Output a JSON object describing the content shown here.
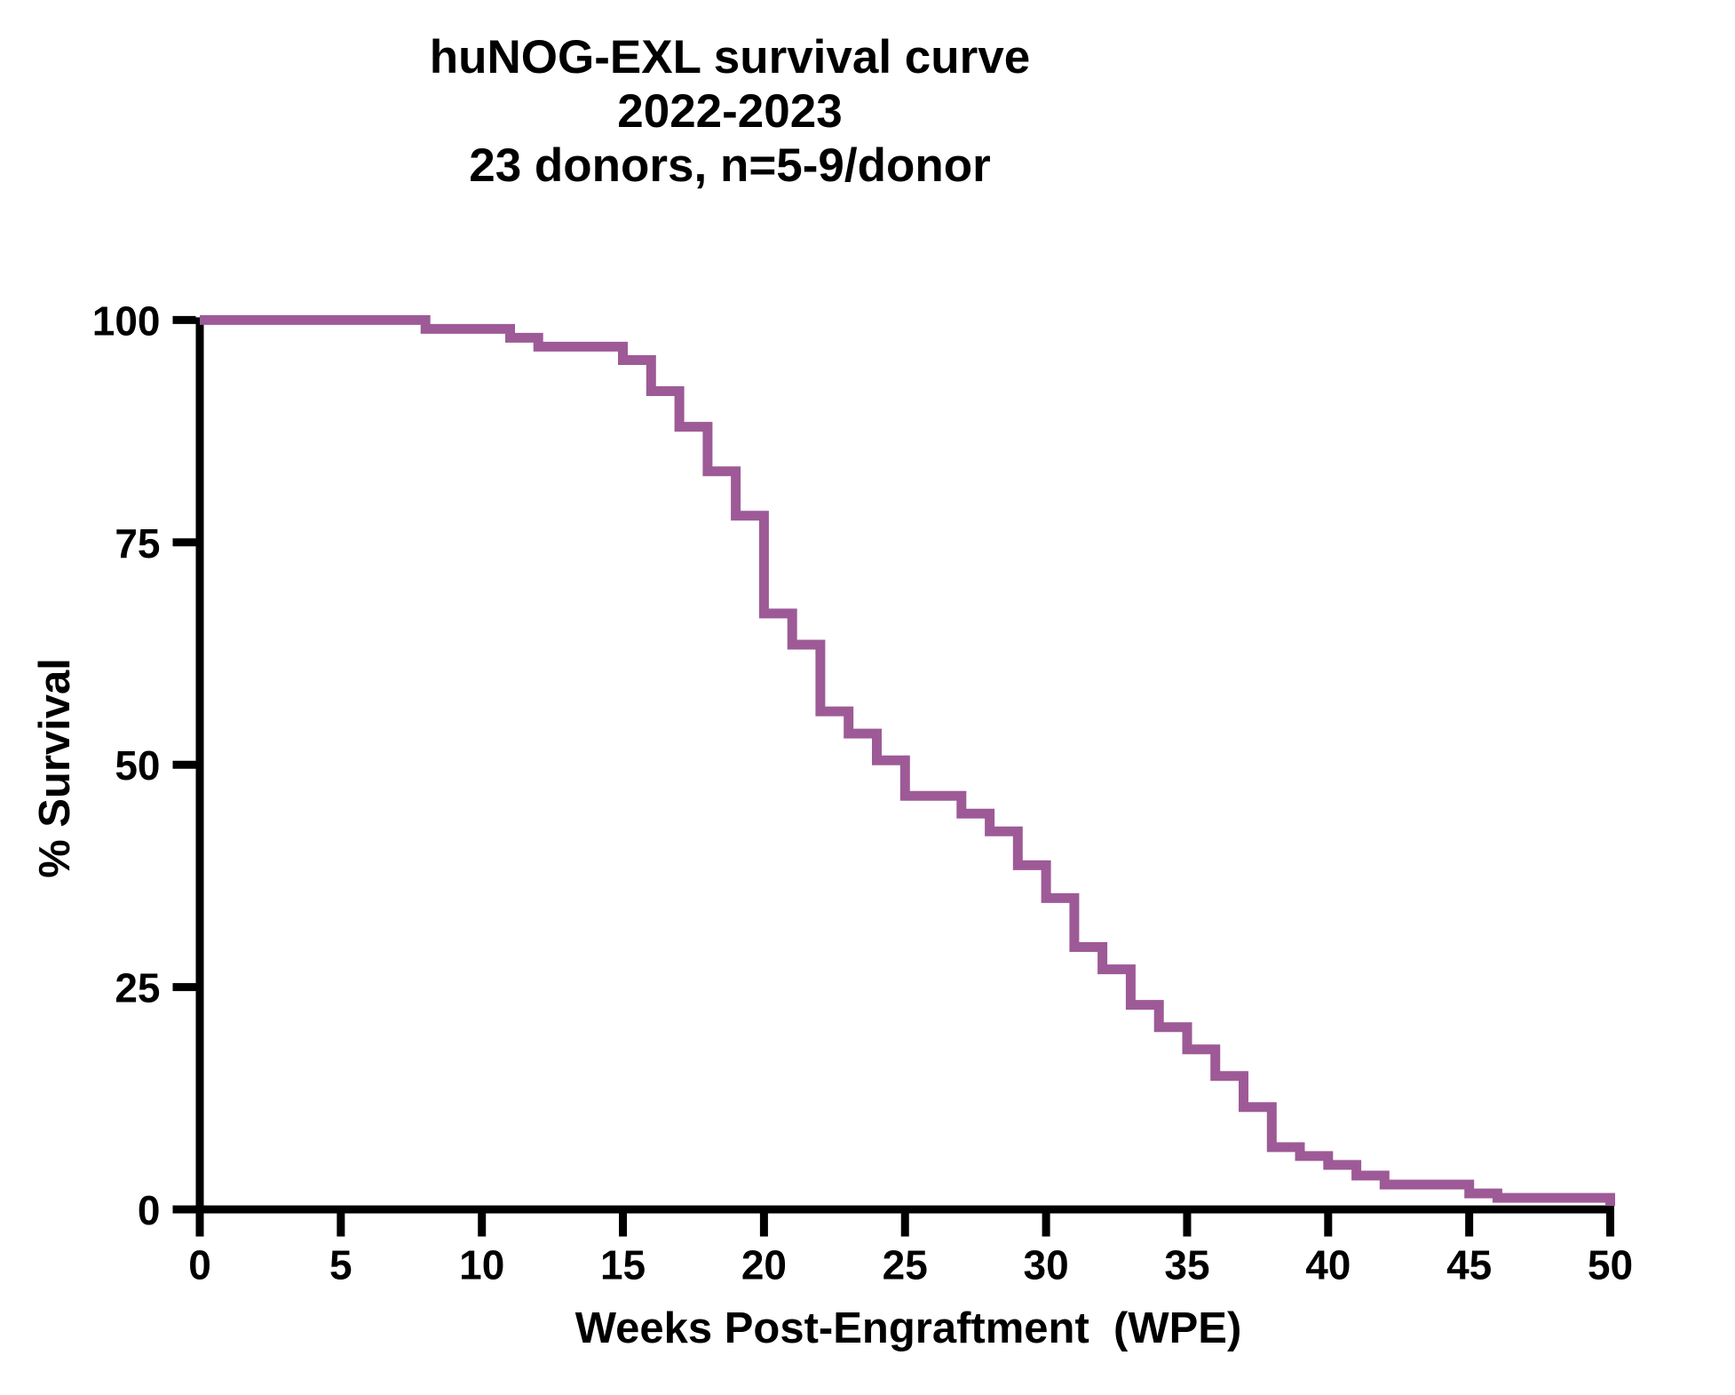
{
  "figure": {
    "title_lines": [
      "huNOG-EXL survival curve",
      "2022-2023",
      "23 donors, n=5-9/donor"
    ]
  },
  "colors": {
    "curve": "#9D5A97",
    "axis": "#000000",
    "text": "#000000",
    "background": "#ffffff"
  },
  "chart_data": {
    "type": "line",
    "subtype": "kaplan-meier-step-curve",
    "title": "huNOG-EXL survival curve 2022-2023, 23 donors, n=5-9/donor",
    "xlabel": "Weeks Post-Engraftment  (WPE)",
    "ylabel": "% Survival",
    "xlim": [
      0,
      50
    ],
    "ylim": [
      0,
      100
    ],
    "x_ticks": [
      0,
      5,
      10,
      15,
      20,
      25,
      30,
      35,
      40,
      45,
      50
    ],
    "y_ticks": [
      0,
      25,
      50,
      75,
      100
    ],
    "grid": false,
    "legend_position": "none",
    "series": [
      {
        "name": "huNOG-EXL survival",
        "color": "#9D5A97",
        "start_point": [
          0,
          100
        ],
        "steps_week_percent": [
          [
            8,
            99
          ],
          [
            11,
            98
          ],
          [
            12,
            97
          ],
          [
            15,
            95.5
          ],
          [
            16,
            92
          ],
          [
            17,
            88
          ],
          [
            18,
            83
          ],
          [
            19,
            78
          ],
          [
            20,
            67
          ],
          [
            21,
            63.5
          ],
          [
            22,
            56
          ],
          [
            23,
            53.5
          ],
          [
            24,
            50.5
          ],
          [
            25,
            46.5
          ],
          [
            27,
            44.5
          ],
          [
            28,
            42.5
          ],
          [
            29,
            38.7
          ],
          [
            30,
            35
          ],
          [
            31,
            29.5
          ],
          [
            32,
            27
          ],
          [
            33,
            23
          ],
          [
            34,
            20.5
          ],
          [
            35,
            18
          ],
          [
            36,
            15
          ],
          [
            37,
            11.5
          ],
          [
            38,
            7
          ],
          [
            39,
            6
          ],
          [
            40,
            5
          ],
          [
            41,
            3.8
          ],
          [
            42,
            2.8
          ],
          [
            45,
            1.8
          ],
          [
            46,
            1.3
          ],
          [
            50,
            0.4
          ]
        ],
        "end_week": 50
      }
    ]
  }
}
